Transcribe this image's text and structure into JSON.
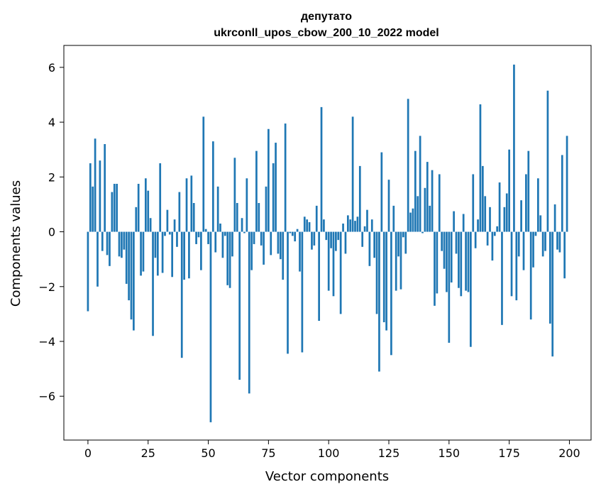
{
  "chart_data": {
    "type": "bar",
    "title": "депутато",
    "subtitle": "ukrconll_upos_cbow_200_10_2022 model",
    "xlabel": "Vector components",
    "ylabel": "Components values",
    "xlim": [
      -10,
      209
    ],
    "ylim": [
      -7.6,
      6.8
    ],
    "xticks": [
      0,
      25,
      50,
      75,
      100,
      125,
      150,
      175,
      200
    ],
    "yticks": [
      -6,
      -4,
      -2,
      0,
      2,
      4,
      6
    ],
    "xtick_labels": [
      "0",
      "25",
      "50",
      "75",
      "100",
      "125",
      "150",
      "175",
      "200"
    ],
    "ytick_labels": [
      "−6",
      "−4",
      "−2",
      "0",
      "2",
      "4",
      "6"
    ],
    "grid": false,
    "bar_color": "#1f77b4",
    "values": [
      -2.9,
      2.5,
      1.65,
      3.4,
      -2.0,
      2.6,
      -0.7,
      3.2,
      -0.85,
      -1.25,
      1.45,
      1.75,
      1.75,
      -0.9,
      -0.95,
      -0.65,
      -1.9,
      -2.5,
      -3.2,
      -3.6,
      0.9,
      1.75,
      -1.6,
      -1.45,
      1.95,
      1.5,
      0.5,
      -3.8,
      -0.95,
      -1.6,
      2.5,
      -1.5,
      -0.15,
      0.8,
      -0.1,
      -1.65,
      0.45,
      -0.55,
      1.45,
      -4.6,
      -1.75,
      1.95,
      -1.7,
      2.05,
      1.05,
      -0.45,
      -0.2,
      -1.4,
      4.2,
      0.1,
      -0.45,
      -6.95,
      3.3,
      -0.75,
      1.65,
      0.3,
      -0.95,
      -0.15,
      -1.95,
      -2.05,
      -0.9,
      2.7,
      1.05,
      -5.4,
      0.5,
      -0.05,
      1.95,
      -5.9,
      -1.4,
      -0.45,
      2.95,
      1.05,
      -0.5,
      -1.2,
      1.65,
      3.75,
      -0.85,
      2.5,
      3.25,
      -0.8,
      -1.0,
      -1.75,
      3.95,
      -4.45,
      -0.05,
      -0.15,
      -0.35,
      0.1,
      -1.45,
      -4.4,
      0.55,
      0.45,
      0.35,
      -0.65,
      -0.5,
      0.95,
      -3.25,
      4.55,
      0.45,
      -0.3,
      -2.15,
      -0.6,
      -2.35,
      -0.7,
      -0.3,
      -3.0,
      0.3,
      -0.8,
      0.6,
      0.45,
      4.2,
      0.4,
      0.55,
      2.4,
      -0.55,
      0.2,
      0.8,
      -1.25,
      0.45,
      -0.95,
      -3.0,
      -5.1,
      2.9,
      -3.3,
      -3.6,
      1.9,
      -4.5,
      0.95,
      -2.15,
      -0.9,
      -2.1,
      -0.2,
      -0.8,
      4.85,
      0.7,
      0.85,
      2.95,
      1.3,
      3.5,
      -0.05,
      1.6,
      2.55,
      0.95,
      2.25,
      -2.7,
      -2.25,
      2.1,
      -0.7,
      -1.35,
      -2.2,
      -4.05,
      -1.85,
      0.75,
      -0.8,
      -2.05,
      -2.35,
      0.65,
      -2.15,
      -2.2,
      -4.2,
      2.1,
      -0.6,
      0.45,
      4.65,
      2.4,
      1.3,
      -0.5,
      0.9,
      -1.05,
      -0.15,
      0.2,
      1.8,
      -3.4,
      0.9,
      1.4,
      3.0,
      -2.35,
      6.1,
      -2.5,
      -0.9,
      1.15,
      -1.4,
      2.1,
      2.95,
      -3.2,
      -1.3,
      -0.15,
      1.95,
      0.6,
      -0.9,
      -0.7,
      5.15,
      -3.35,
      -4.55,
      1.0,
      -0.65,
      -0.75,
      2.8,
      -1.7,
      3.5
    ]
  }
}
